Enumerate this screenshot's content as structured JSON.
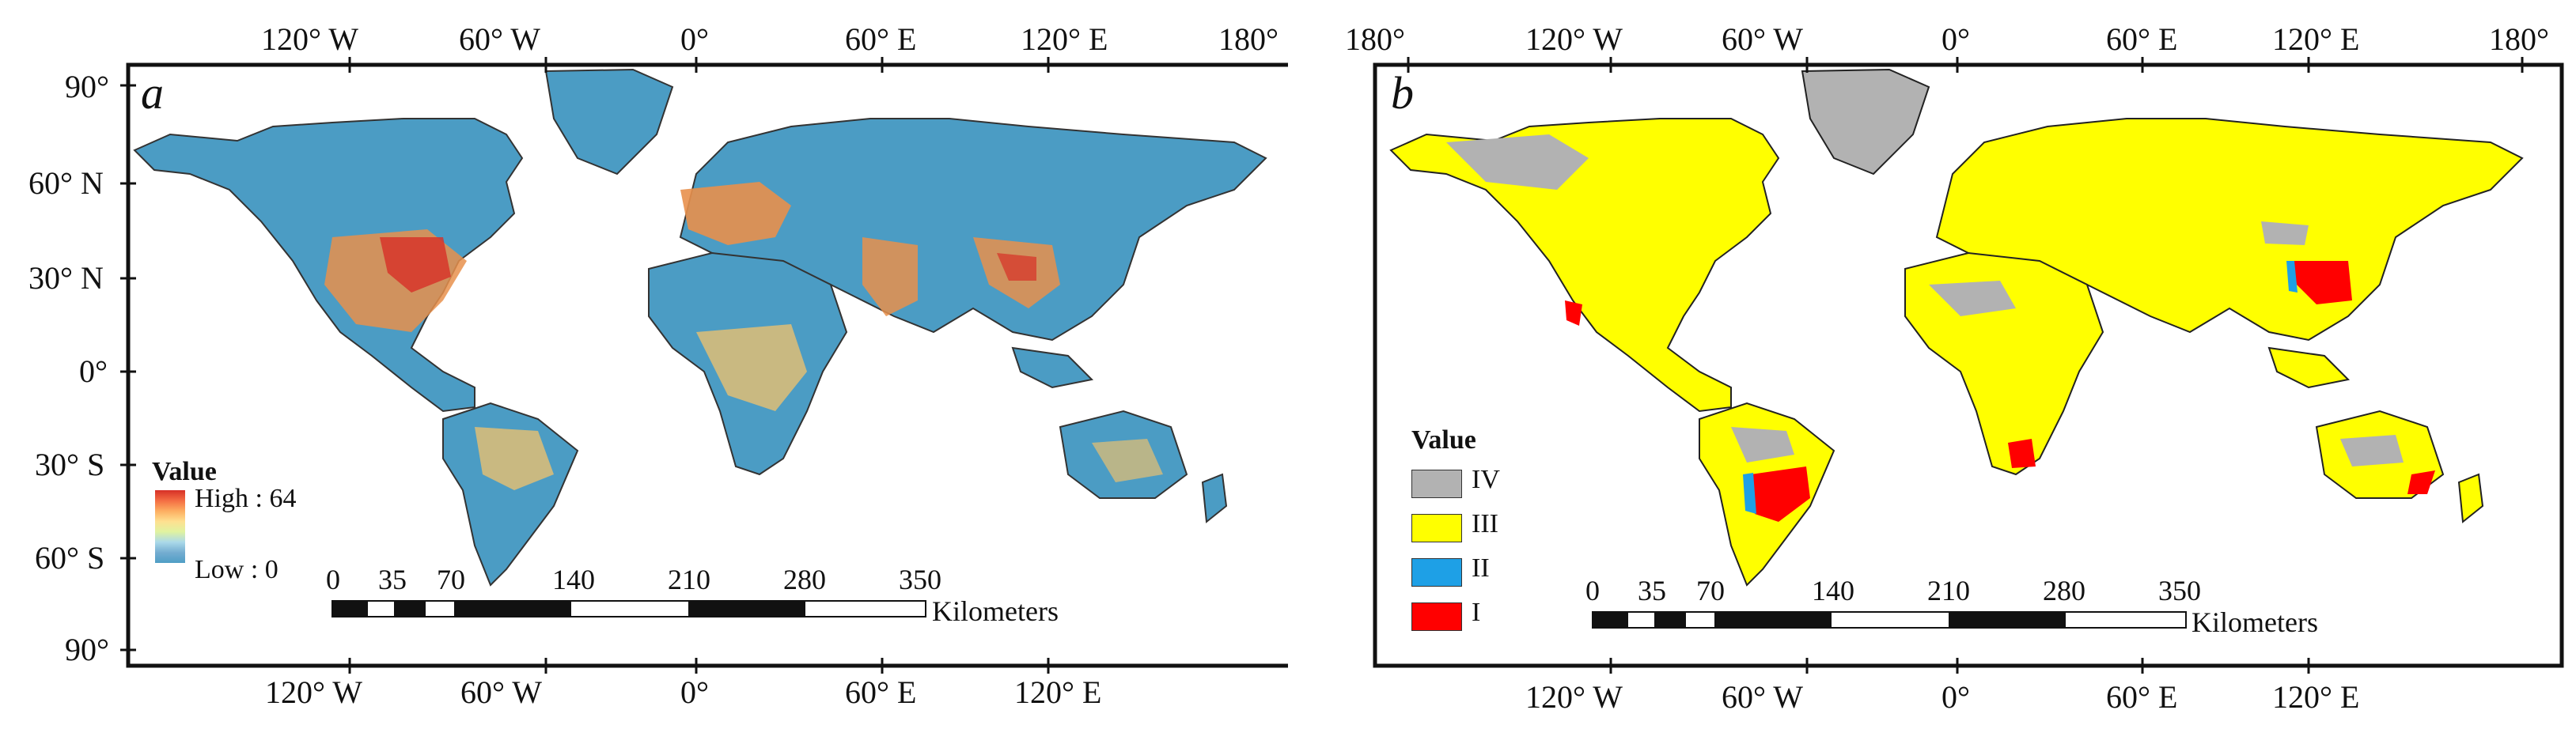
{
  "panel_a": {
    "label": "a",
    "lon_labels_top": [
      "120° W",
      "60° W",
      "0°",
      "60° E",
      "120° E",
      "180°"
    ],
    "lon_labels_bottom": [
      "120° W",
      "60° W",
      "0°",
      "60° E",
      "120° E"
    ],
    "lat_labels": [
      "90°",
      "60° N",
      "30° N",
      "0°",
      "30° S",
      "60° S",
      "90°"
    ],
    "legend": {
      "title": "Value",
      "high": "High : 64",
      "low": "Low : 0",
      "ramp_colors": [
        "#d73027",
        "#fdae61",
        "#fee090",
        "#abd9e9",
        "#4f9ec5"
      ]
    },
    "scale_bar": {
      "ticks": [
        "0",
        "35",
        "70",
        "140",
        "210",
        "280",
        "350"
      ],
      "unit": "Kilometers"
    }
  },
  "panel_b": {
    "label": "b",
    "lon_labels_top": [
      "180°",
      "120° W",
      "60° W",
      "0°",
      "60° E",
      "120° E",
      "180°"
    ],
    "lon_labels_bottom": [
      "120° W",
      "60° W",
      "0°",
      "60° E",
      "120° E"
    ],
    "legend": {
      "title": "Value",
      "classes": [
        {
          "label": "IV",
          "color": "#b2b2b2"
        },
        {
          "label": "III",
          "color": "#ffff00"
        },
        {
          "label": "II",
          "color": "#1ea0e6"
        },
        {
          "label": "I",
          "color": "#ff0000"
        }
      ]
    },
    "scale_bar": {
      "ticks": [
        "0",
        "35",
        "70",
        "140",
        "210",
        "280",
        "350"
      ],
      "unit": "Kilometers"
    }
  },
  "colors": {
    "land_base_a": "#4b9cc4",
    "land_warm_a": "#e8904c",
    "hot_a": "#d73027",
    "land_b": "#ffff00",
    "grey_b": "#b2b2b2",
    "red_b": "#ff0000",
    "blue_b": "#1ea0e6"
  }
}
